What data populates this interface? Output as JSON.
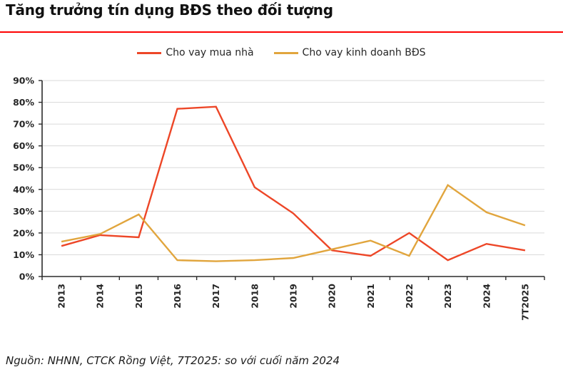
{
  "header": {
    "rule_color": "#fe0202"
  },
  "chart_data": {
    "type": "line",
    "title": "Tăng trưởng tín dụng BĐS theo đối tượng",
    "categories": [
      "2013",
      "2014",
      "2015",
      "2016",
      "2017",
      "2018",
      "2019",
      "2020",
      "2021",
      "2022",
      "2023",
      "2024",
      "7T2025"
    ],
    "series": [
      {
        "name": "Cho vay mua nhà",
        "color": "#ed4627",
        "values": [
          14,
          19,
          18,
          77,
          78,
          41,
          29,
          12,
          9.5,
          20,
          7.5,
          15,
          12
        ]
      },
      {
        "name": "Cho vay kinh doanh BĐS",
        "color": "#e1a53d",
        "values": [
          16,
          19.5,
          28.5,
          7.5,
          7,
          7.5,
          8.5,
          12.5,
          16.5,
          9.5,
          42,
          29.5,
          23.5
        ]
      }
    ],
    "ylim": [
      0,
      90
    ],
    "y_tick_step": 10,
    "y_tick_labels": [
      "0%",
      "10%",
      "20%",
      "30%",
      "40%",
      "50%",
      "60%",
      "70%",
      "80%",
      "90%"
    ],
    "x_label_rotation": -90,
    "grid": true,
    "grid_color": "#dadada",
    "axis_color": "#2b2b2b",
    "legend_position": "top"
  },
  "footer": {
    "source_note": "Nguồn: NHNN, CTCK Rồng Việt, 7T2025: so với cuối năm 2024"
  }
}
